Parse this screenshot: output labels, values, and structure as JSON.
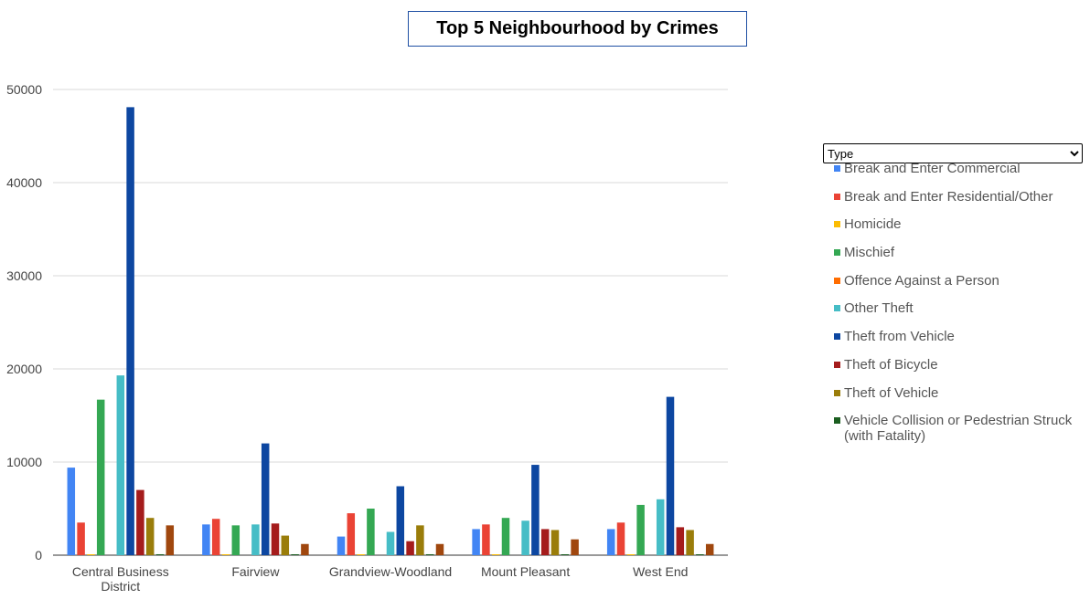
{
  "chart_data": {
    "type": "bar",
    "title": "Top 5 Neighbourhood by Crimes",
    "xlabel": "",
    "ylabel": "",
    "ylim": [
      0,
      55000
    ],
    "yticks": [
      0,
      10000,
      20000,
      30000,
      40000,
      50000
    ],
    "ytick_labels": [
      "0",
      "10000",
      "20000",
      "30000",
      "40000",
      "50000"
    ],
    "grid": true,
    "legend_position": "right",
    "categories": [
      "Central Business District",
      "Fairview",
      "Grandview-Woodland",
      "Mount Pleasant",
      "West End"
    ],
    "category_labels": [
      [
        "Central Business",
        "District"
      ],
      [
        "Fairview"
      ],
      [
        "Grandview-Woodland"
      ],
      [
        "Mount Pleasant"
      ],
      [
        "West End"
      ]
    ],
    "series": [
      {
        "name": "Break and Enter Commercial",
        "color": "#4285f4",
        "values": [
          9400,
          3300,
          2000,
          2800,
          2800
        ]
      },
      {
        "name": "Break and Enter Residential/Other",
        "color": "#ea4335",
        "values": [
          3500,
          3900,
          4500,
          3300,
          3500
        ]
      },
      {
        "name": "Homicide",
        "color": "#fbbc04",
        "values": [
          10,
          5,
          10,
          5,
          5
        ]
      },
      {
        "name": "Mischief",
        "color": "#34a853",
        "values": [
          16700,
          3200,
          5000,
          4000,
          5400
        ]
      },
      {
        "name": "Offence Against a Person",
        "color": "#ff6d01",
        "values": [
          0,
          0,
          0,
          0,
          0
        ]
      },
      {
        "name": "Other Theft",
        "color": "#46bdc6",
        "values": [
          19300,
          3300,
          2500,
          3700,
          6000
        ]
      },
      {
        "name": "Theft from Vehicle",
        "color": "#0d47a1",
        "values": [
          48100,
          12000,
          7400,
          9700,
          17000
        ]
      },
      {
        "name": "Theft of Bicycle",
        "color": "#a51c1c",
        "values": [
          7000,
          3400,
          1500,
          2800,
          3000
        ]
      },
      {
        "name": "Theft of Vehicle",
        "color": "#9a7d0a",
        "values": [
          4000,
          2100,
          3200,
          2700,
          2700
        ]
      },
      {
        "name": "Vehicle Collision or Pedestrian Struck (with Fatality)",
        "color": "#1b5e20",
        "values": [
          100,
          80,
          100,
          80,
          60
        ]
      },
      {
        "name": "",
        "color": "#a0470e",
        "values": [
          3200,
          1200,
          1200,
          1700,
          1200
        ]
      }
    ]
  },
  "controls": {
    "type_select": {
      "selected": "Type"
    }
  },
  "legend": [
    {
      "label": "Break and Enter Commercial",
      "color": "#4285f4"
    },
    {
      "label": "Break and Enter Residential/Other",
      "color": "#ea4335"
    },
    {
      "label": "Homicide",
      "color": "#fbbc04"
    },
    {
      "label": "Mischief",
      "color": "#34a853"
    },
    {
      "label": "Offence Against a Person",
      "color": "#ff6d01"
    },
    {
      "label": "Other Theft",
      "color": "#46bdc6"
    },
    {
      "label": "Theft from Vehicle",
      "color": "#0d47a1"
    },
    {
      "label": "Theft of Bicycle",
      "color": "#a51c1c"
    },
    {
      "label": "Theft of Vehicle",
      "color": "#9a7d0a"
    },
    {
      "label": "Vehicle Collision or Pedestrian Struck (with Fatality)",
      "color": "#1b5e20"
    }
  ]
}
